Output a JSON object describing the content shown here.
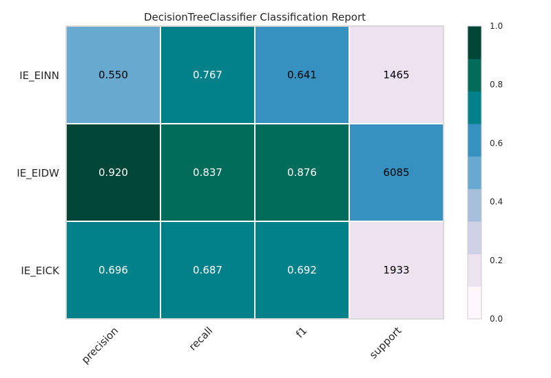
{
  "chart_data": {
    "type": "heatmap",
    "title": "DecisionTreeClassifier Classification Report",
    "rows": [
      "IE_EINN",
      "IE_EIDW",
      "IE_EICK"
    ],
    "columns": [
      "precision",
      "recall",
      "f1",
      "support"
    ],
    "cell_text": [
      [
        "0.550",
        "0.767",
        "0.641",
        "1465"
      ],
      [
        "0.920",
        "0.837",
        "0.876",
        "6085"
      ],
      [
        "0.696",
        "0.687",
        "0.692",
        "1933"
      ]
    ],
    "cell_colors": [
      [
        "#67a9cf",
        "#02818a",
        "#3690c0",
        "#ece2f0"
      ],
      [
        "#014636",
        "#016c59",
        "#016c59",
        "#3690c0"
      ],
      [
        "#02818a",
        "#02818a",
        "#02818a",
        "#ece2f0"
      ]
    ],
    "text_colors": [
      [
        "#000000",
        "#ffffff",
        "#000000",
        "#000000"
      ],
      [
        "#ffffff",
        "#ffffff",
        "#ffffff",
        "#000000"
      ],
      [
        "#ffffff",
        "#ffffff",
        "#ffffff",
        "#000000"
      ]
    ],
    "colorbar": {
      "range": [
        0.0,
        1.0
      ],
      "ticks": [
        "0.0",
        "0.2",
        "0.4",
        "0.6",
        "0.8",
        "1.0"
      ],
      "colors": [
        "#fff7fb",
        "#ece2f0",
        "#d0d1e6",
        "#a6bddb",
        "#67a9cf",
        "#3690c0",
        "#02818a",
        "#016c59",
        "#014636"
      ]
    }
  }
}
